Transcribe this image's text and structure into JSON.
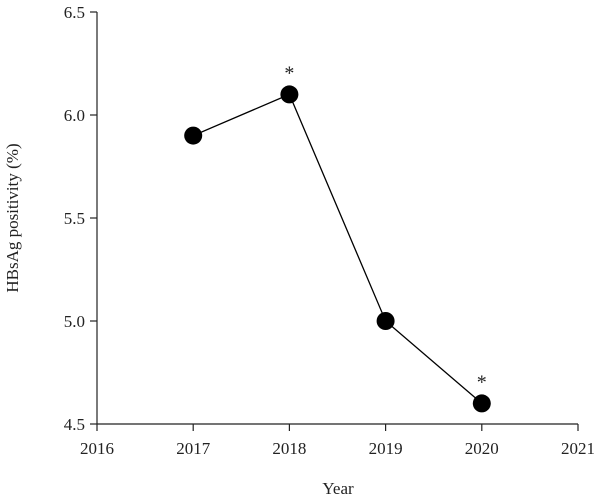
{
  "chart_data": {
    "type": "line",
    "x_label": "Year",
    "y_label": "HBsAg positivity (%)",
    "x": [
      2017,
      2018,
      2019,
      2020
    ],
    "series": [
      {
        "color": "#000000",
        "values": [
          5.9,
          6.1,
          5.0,
          4.6
        ]
      }
    ],
    "xlim": [
      2016,
      2021
    ],
    "xticks": [
      2016,
      2017,
      2018,
      2019,
      2020,
      2021
    ],
    "ylim": [
      4.5,
      6.5
    ],
    "yticks": [
      4.5,
      {
        "value": 5,
        "label": "5.0"
      },
      5.5,
      {
        "value": 6,
        "label": "6.0"
      },
      6.5
    ],
    "grid": false,
    "annotations": [
      {
        "text": "*",
        "x": 2018,
        "y": 6.1
      },
      {
        "text": "*",
        "x": 2020,
        "y": 4.6
      }
    ]
  }
}
